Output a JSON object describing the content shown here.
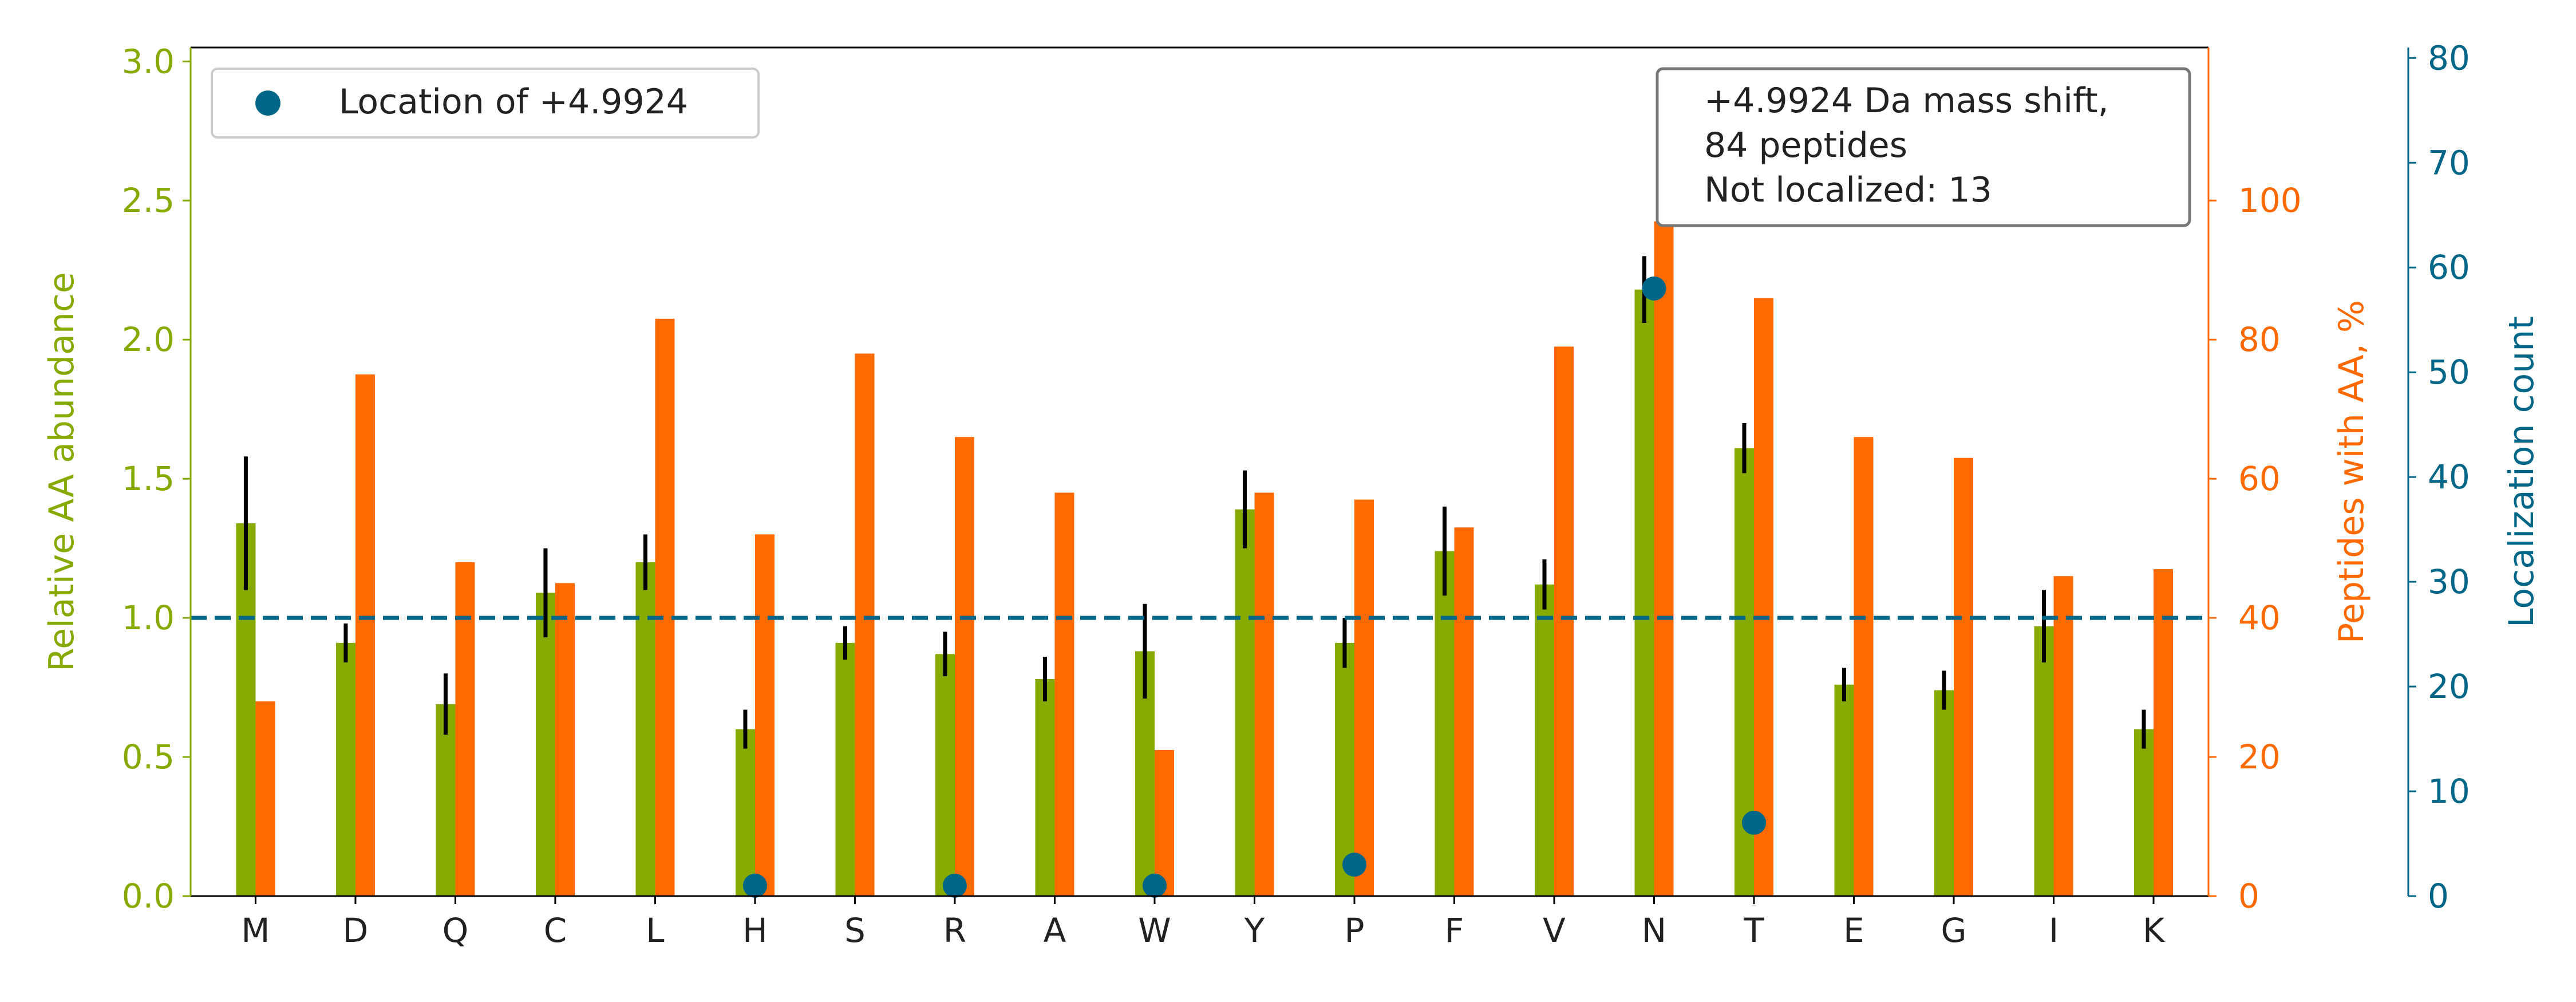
{
  "chart_data": {
    "type": "bar",
    "categories": [
      "M",
      "D",
      "Q",
      "C",
      "L",
      "H",
      "S",
      "R",
      "A",
      "W",
      "Y",
      "P",
      "F",
      "V",
      "N",
      "T",
      "E",
      "G",
      "I",
      "K"
    ],
    "series": [
      {
        "axis": "left",
        "color": "#86aa00",
        "values": [
          1.34,
          0.91,
          0.69,
          1.09,
          1.2,
          0.6,
          0.91,
          0.87,
          0.78,
          0.88,
          1.39,
          0.91,
          1.24,
          1.12,
          2.18,
          1.61,
          0.76,
          0.74,
          0.97,
          0.6
        ],
        "errors": [
          0.24,
          0.07,
          0.11,
          0.16,
          0.1,
          0.07,
          0.06,
          0.08,
          0.08,
          0.17,
          0.14,
          0.09,
          0.16,
          0.09,
          0.12,
          0.09,
          0.06,
          0.07,
          0.13,
          0.07
        ]
      },
      {
        "axis": "right",
        "color": "#ff6a00",
        "values": [
          28,
          75,
          48,
          45,
          83,
          52,
          78,
          66,
          58,
          21,
          58,
          57,
          53,
          79,
          97,
          86,
          66,
          63,
          46,
          47
        ]
      },
      {
        "name": "Location of +4.9924",
        "axis": "far-right",
        "color": "#006688",
        "kind": "scatter",
        "points": [
          {
            "category": "H",
            "value": 1
          },
          {
            "category": "R",
            "value": 1
          },
          {
            "category": "W",
            "value": 1
          },
          {
            "category": "P",
            "value": 3
          },
          {
            "category": "N",
            "value": 58
          },
          {
            "category": "T",
            "value": 7
          }
        ]
      }
    ],
    "reference_line": {
      "value": 1.0,
      "axis": "left",
      "style": "dashed",
      "color": "#006688"
    },
    "ylabel_left": "Relative AA abundance",
    "ylabel_right": "Peptides with AA, %",
    "ylabel_far_right": "Localization count",
    "ylim_left": [
      0,
      3.05
    ],
    "ylim_right": [
      0,
      122
    ],
    "ylim_far_right": [
      0,
      81
    ],
    "yticks_left": [
      "0.0",
      "0.5",
      "1.0",
      "1.5",
      "2.0",
      "2.5",
      "3.0"
    ],
    "yticks_right": [
      "0",
      "20",
      "40",
      "60",
      "80",
      "100"
    ],
    "yticks_far_right": [
      "0",
      "10",
      "20",
      "30",
      "40",
      "50",
      "60",
      "70",
      "80"
    ],
    "legend": {
      "label": "Location of +4.9924",
      "placement": "top-left"
    },
    "annotation": {
      "lines": [
        "+4.9924 Da mass shift,",
        "84 peptides",
        "Not localized: 13"
      ],
      "placement": "top-right"
    },
    "colors": {
      "left_axis": "#86aa00",
      "right_axis": "#ff6a00",
      "far_right_axis": "#006688",
      "error_bar": "#000000"
    }
  }
}
